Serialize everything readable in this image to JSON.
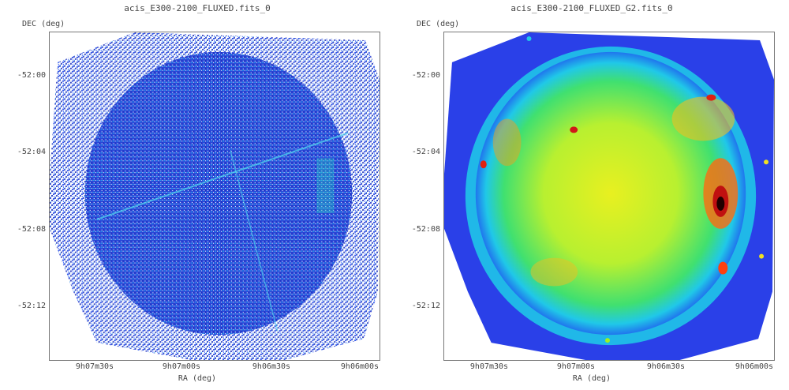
{
  "left_panel": {
    "title": "acis_E300-2100_FLUXED.fits_0",
    "dec_label": "DEC (deg)",
    "ra_label": "RA (deg)",
    "dec_ticks": [
      "-52:00",
      "-52:04",
      "-52:08",
      "-52:12"
    ],
    "ra_ticks": [
      "9h07m30s",
      "9h07m00s",
      "9h06m30s",
      "9h06m00s"
    ],
    "colors": {
      "background": "#ffffff",
      "sparse": "#2233cc",
      "dense": "#1a55ee",
      "highlight": "#22ccee"
    }
  },
  "right_panel": {
    "title": "acis_E300-2100_FLUXED_G2.fits_0",
    "dec_label": "DEC (deg)",
    "ra_label": "RA (deg)",
    "dec_ticks": [
      "-52:00",
      "-52:04",
      "-52:08",
      "-52:12"
    ],
    "ra_ticks": [
      "9h07m30s",
      "9h07m00s",
      "9h06m30s",
      "9h06m00s"
    ],
    "colors": {
      "outer": "#1a1aee",
      "mid": "#18c8e8",
      "inner": "#b8f020",
      "hot": "#ff3010",
      "peak": "#200000"
    }
  }
}
